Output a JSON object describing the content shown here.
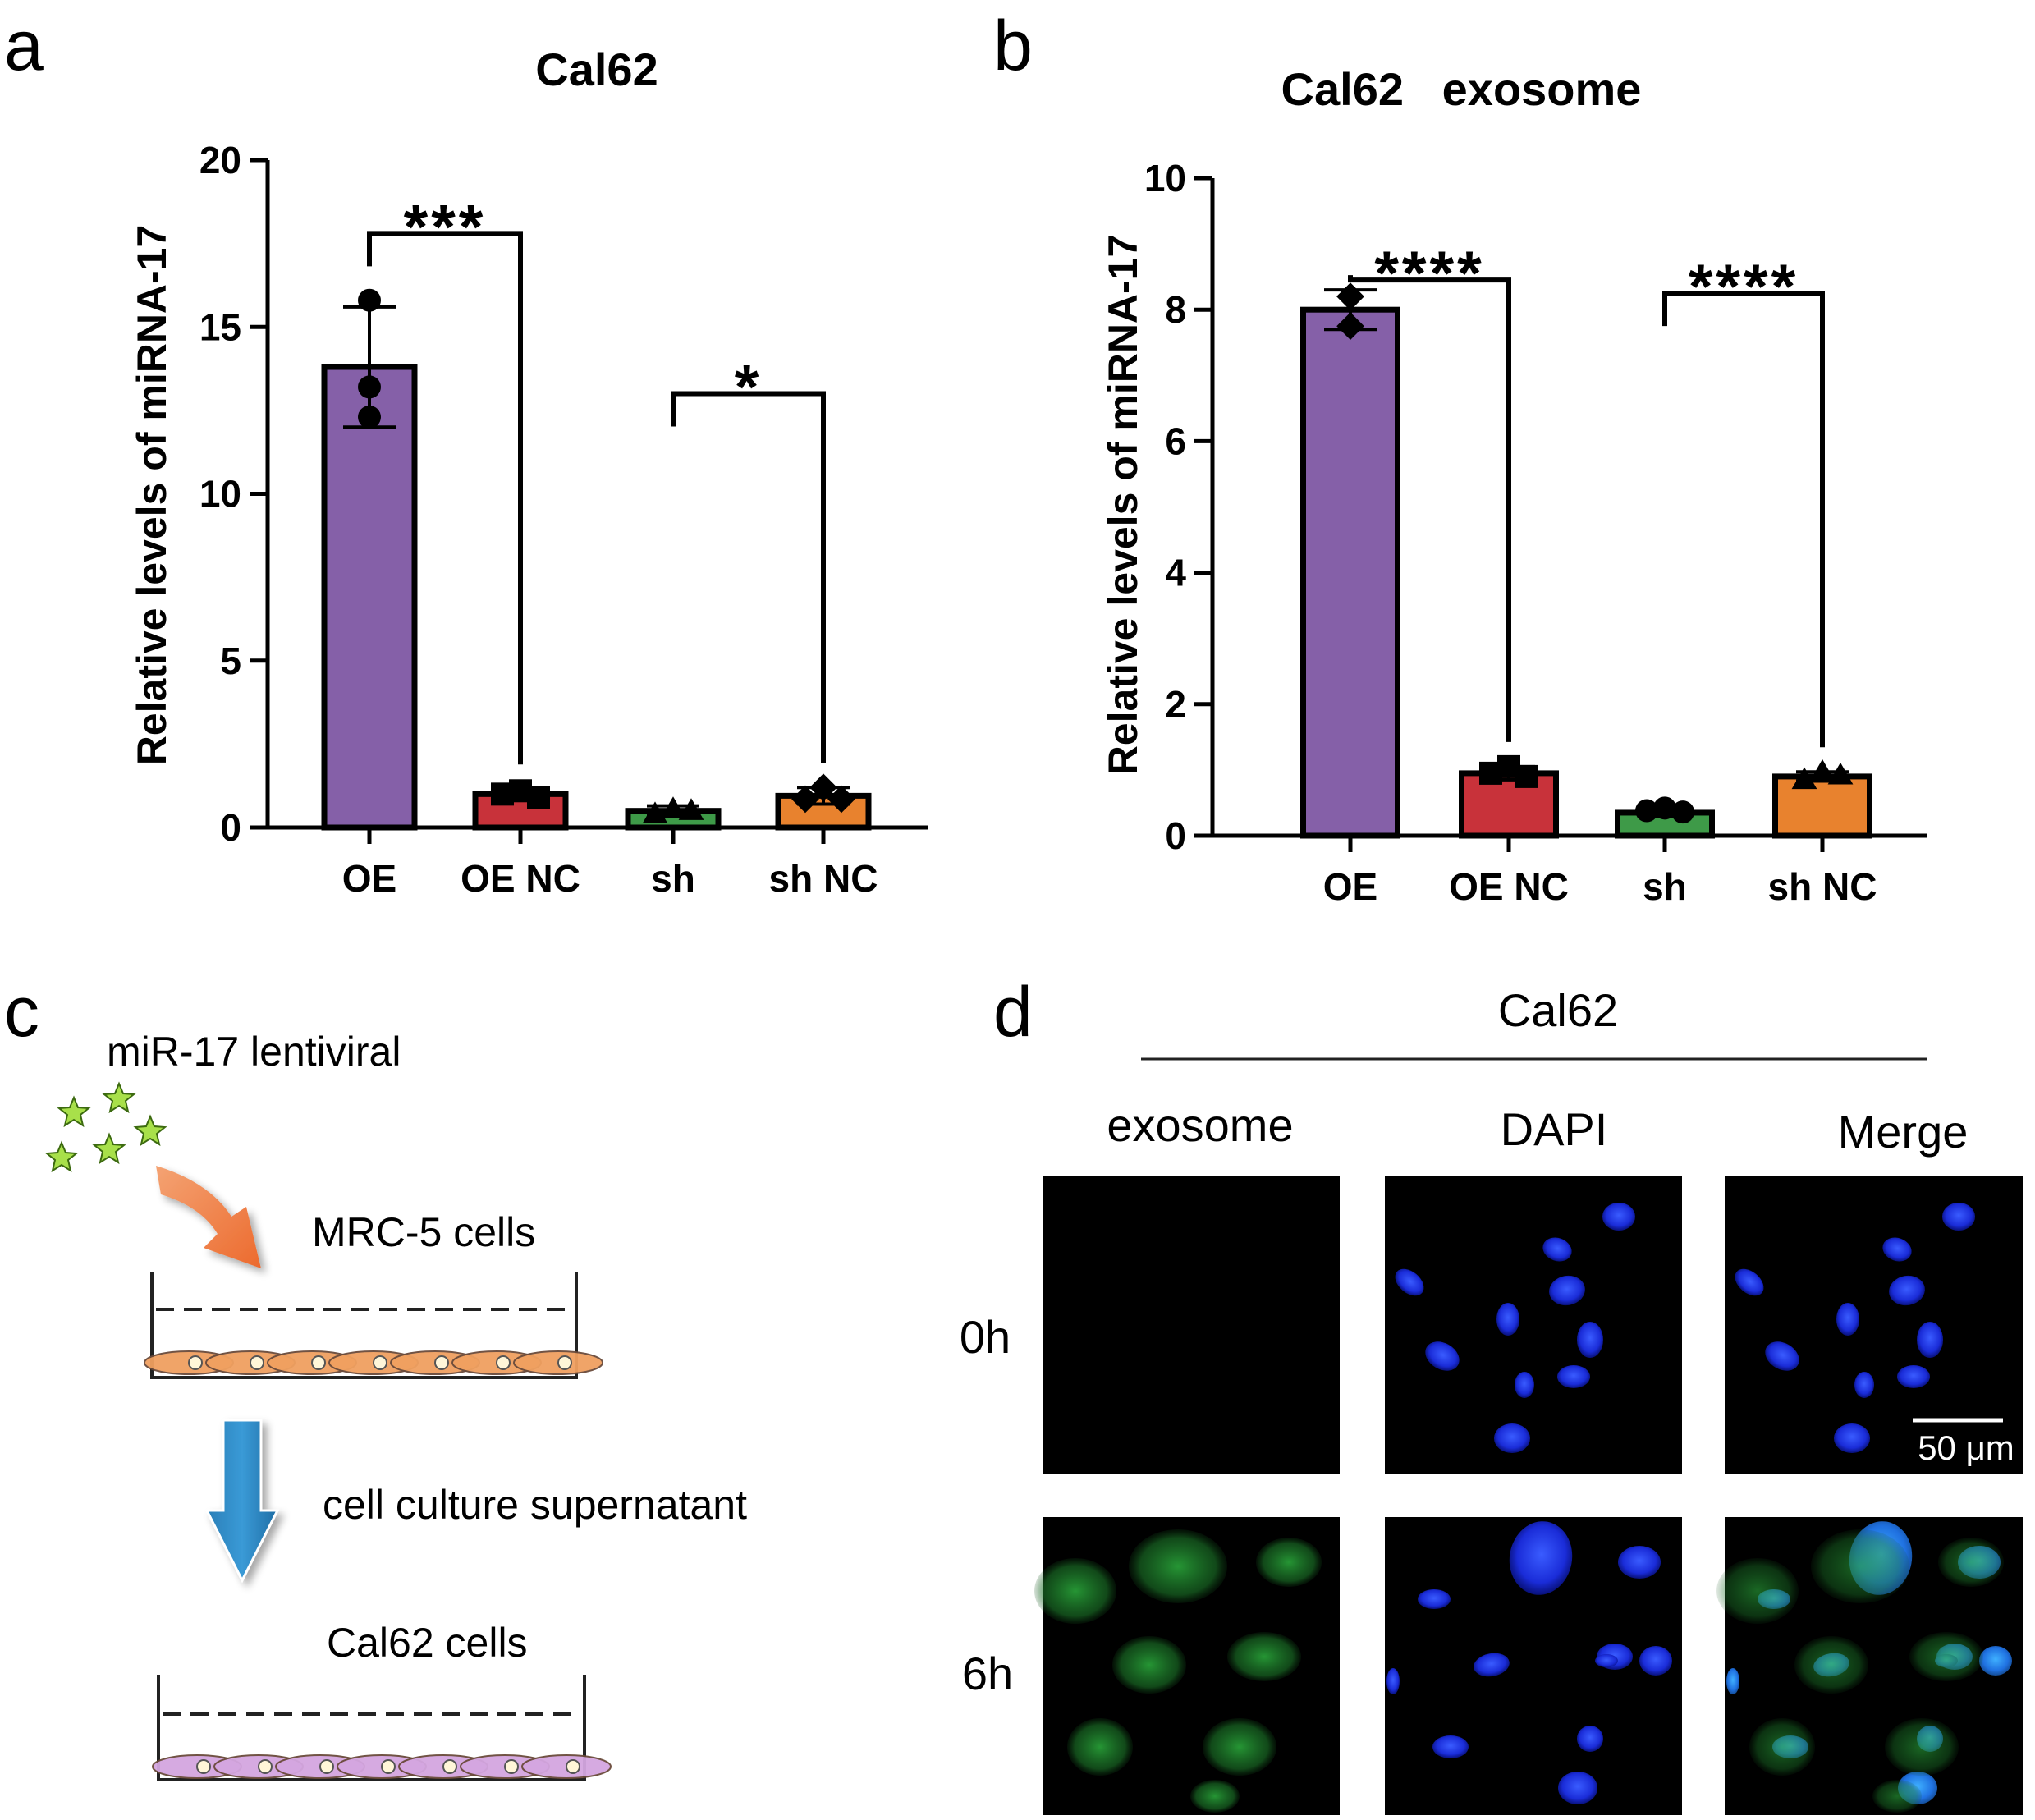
{
  "panels": {
    "a": {
      "letter": "a"
    },
    "b": {
      "letter": "b"
    },
    "c": {
      "letter": "c"
    },
    "d": {
      "letter": "d"
    }
  },
  "chart_data": [
    {
      "type": "bar",
      "title": "Cal62",
      "ylabel": "Relative levels of miRNA-17",
      "xlabel": "",
      "categories": [
        "OE",
        "OE NC",
        "sh",
        "sh NC"
      ],
      "values": [
        13.8,
        1.0,
        0.5,
        0.95
      ],
      "errors": [
        1.8,
        0.15,
        0.15,
        0.25
      ],
      "points": [
        [
          15.8,
          13.2,
          12.3
        ],
        [
          1.0,
          1.1,
          0.9
        ],
        [
          0.4,
          0.55,
          0.5
        ],
        [
          0.85,
          1.2,
          0.85
        ]
      ],
      "marker": [
        "circle",
        "square",
        "triangle",
        "diamond"
      ],
      "colors": [
        "#8560a8",
        "#c8323a",
        "#3e9a48",
        "#e8822e"
      ],
      "ylim": [
        0,
        20
      ],
      "yticks": [
        0,
        5,
        10,
        15,
        20
      ],
      "significance": [
        {
          "from": 0,
          "to": 1,
          "label": "***",
          "y": 17.8
        },
        {
          "from": 2,
          "to": 3,
          "label": "*",
          "y": 13.0
        }
      ]
    },
    {
      "type": "bar",
      "title": "Cal62   exosome",
      "ylabel": "Relative levels of miRNA-17",
      "xlabel": "",
      "categories": [
        "OE",
        "OE NC",
        "sh",
        "sh NC"
      ],
      "values": [
        8.0,
        0.95,
        0.35,
        0.9
      ],
      "errors": [
        0.3,
        0.1,
        0.05,
        0.07
      ],
      "points": [
        [
          8.2,
          8.2,
          7.75
        ],
        [
          0.95,
          1.05,
          0.9
        ],
        [
          0.38,
          0.42,
          0.36
        ],
        [
          0.85,
          0.97,
          0.92
        ]
      ],
      "marker": [
        "diamond",
        "square",
        "circle",
        "triangle"
      ],
      "colors": [
        "#8560a8",
        "#c8323a",
        "#3e9a48",
        "#e8822e"
      ],
      "ylim": [
        0,
        10
      ],
      "yticks": [
        0,
        2,
        4,
        6,
        8,
        10
      ],
      "significance": [
        {
          "from": 0,
          "to": 1,
          "label": "****",
          "y": 8.45
        },
        {
          "from": 2,
          "to": 3,
          "label": "****",
          "y": 8.25
        }
      ]
    }
  ],
  "schematic": {
    "lentiviral_label": "miR-17 lentiviral",
    "donor_cells_label": "MRC-5 cells",
    "transfer_label": "cell culture supernatant",
    "recipient_cells_label": "Cal62 cells"
  },
  "microscopy": {
    "header": "Cal62",
    "columns": [
      "exosome",
      "DAPI",
      "Merge"
    ],
    "rows": [
      "0h",
      "6h"
    ],
    "scale_bar": "50 μm"
  }
}
